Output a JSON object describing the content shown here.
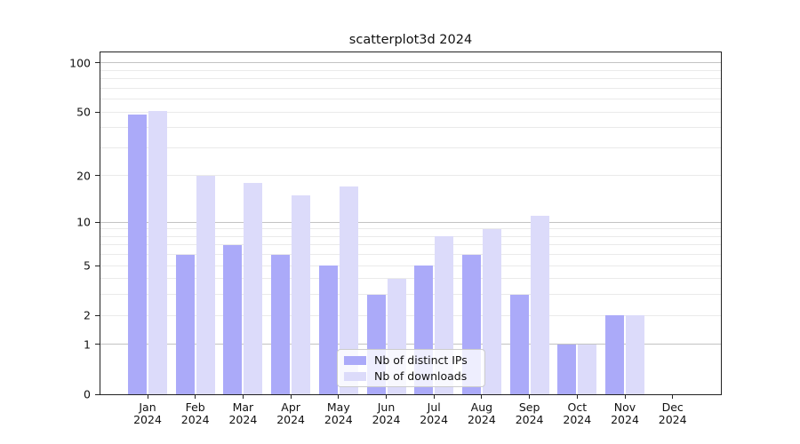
{
  "title": "scatterplot3d 2024",
  "colors": {
    "distinct_ips": "#abaaf9",
    "downloads": "#dcdbfa",
    "grid_major": "#c3c3c3",
    "grid_minor": "#eaeaea",
    "spine": "#222222",
    "text": "#111111"
  },
  "legend": {
    "items": [
      {
        "label": "Nb of distinct IPs",
        "series": "distinct_ips"
      },
      {
        "label": "Nb of downloads",
        "series": "downloads"
      }
    ]
  },
  "chart_data": {
    "type": "bar",
    "title": "scatterplot3d 2024",
    "categories": [
      "Jan 2024",
      "Feb 2024",
      "Mar 2024",
      "Apr 2024",
      "May 2024",
      "Jun 2024",
      "Jul 2024",
      "Aug 2024",
      "Sep 2024",
      "Oct 2024",
      "Nov 2024",
      "Dec 2024"
    ],
    "series": [
      {
        "name": "Nb of distinct IPs",
        "color_key": "distinct_ips",
        "values": [
          48,
          6,
          7,
          6,
          5,
          3,
          5,
          6,
          3,
          1,
          2,
          0
        ]
      },
      {
        "name": "Nb of downloads",
        "color_key": "downloads",
        "values": [
          51,
          20,
          18,
          15,
          17,
          4,
          8,
          9,
          11,
          1,
          2,
          0
        ]
      }
    ],
    "xlabel": "",
    "ylabel": "",
    "yscale": "log1p",
    "yticks": [
      0,
      1,
      2,
      5,
      10,
      20,
      50,
      100
    ],
    "ylim": [
      0,
      116
    ],
    "grid": "horizontal",
    "legend_position": "lower-center-inside"
  }
}
